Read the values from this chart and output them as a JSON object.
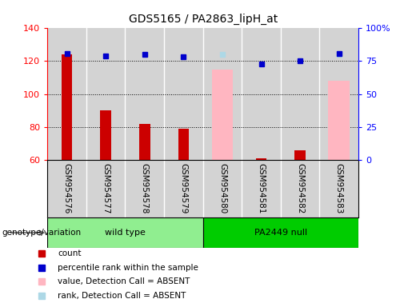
{
  "title": "GDS5165 / PA2863_lipH_at",
  "samples": [
    "GSM954576",
    "GSM954577",
    "GSM954578",
    "GSM954579",
    "GSM954580",
    "GSM954581",
    "GSM954582",
    "GSM954583"
  ],
  "red_bars": [
    124,
    90,
    82,
    79,
    null,
    61,
    66,
    null
  ],
  "blue_dots": [
    81,
    79,
    80,
    78,
    null,
    73,
    75,
    81
  ],
  "pink_bars": [
    null,
    null,
    null,
    null,
    115,
    null,
    null,
    108
  ],
  "light_blue_dots": [
    null,
    null,
    null,
    null,
    80,
    null,
    null,
    80
  ],
  "ylim": [
    60,
    140
  ],
  "y2lim": [
    0,
    100
  ],
  "yticks": [
    60,
    80,
    100,
    120,
    140
  ],
  "y2ticks": [
    0,
    25,
    50,
    75,
    100
  ],
  "y2ticklabels": [
    "0",
    "25",
    "50",
    "75",
    "100%"
  ],
  "hlines": [
    80,
    100,
    120
  ],
  "legend_items": [
    {
      "label": "count",
      "color": "#cc0000"
    },
    {
      "label": "percentile rank within the sample",
      "color": "#0000cc"
    },
    {
      "label": "value, Detection Call = ABSENT",
      "color": "#ffb6c1"
    },
    {
      "label": "rank, Detection Call = ABSENT",
      "color": "#add8e6"
    }
  ],
  "genotype_label": "genotype/variation",
  "wt_label": "wild type",
  "pa_label": "PA2449 null",
  "col_bg": "#d3d3d3",
  "wt_color": "#90EE90",
  "pa_color": "#00cc00",
  "plot_bg": "#ffffff"
}
